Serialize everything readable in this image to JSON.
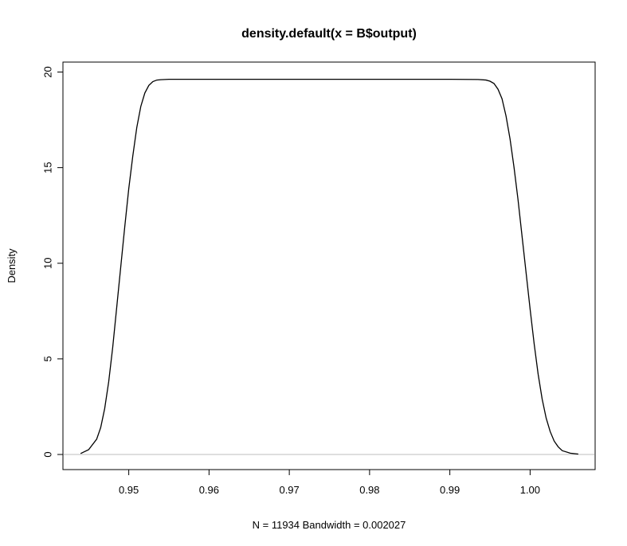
{
  "chart_data": {
    "type": "line",
    "title": "density.default(x = B$output)",
    "xlabel": "N = 11934   Bandwidth = 0.002027",
    "ylabel": "Density",
    "xlim": [
      0.9418,
      1.0081
    ],
    "ylim": [
      -0.79,
      20.52
    ],
    "x_ticks": [
      0.95,
      0.96,
      0.97,
      0.98,
      0.99,
      1.0
    ],
    "x_tick_labels": [
      "0.95",
      "0.96",
      "0.97",
      "0.98",
      "0.99",
      "1.00"
    ],
    "y_ticks": [
      0,
      5,
      10,
      15,
      20
    ],
    "y_tick_labels": [
      "0",
      "5",
      "10",
      "15",
      "20"
    ],
    "baseline": 0,
    "baseline_color": "#bebebe",
    "line_color": "#000000",
    "grid": false,
    "series": [
      {
        "x": [
          0.944,
          0.945,
          0.946,
          0.9465,
          0.947,
          0.9475,
          0.948,
          0.9485,
          0.949,
          0.9495,
          0.95,
          0.9505,
          0.951,
          0.9515,
          0.952,
          0.9525,
          0.953,
          0.9535,
          0.954,
          0.9545,
          0.955,
          0.956,
          0.96,
          0.97,
          0.98,
          0.99,
          0.9935,
          0.9945,
          0.995,
          0.9955,
          0.996,
          0.9965,
          0.997,
          0.9975,
          0.998,
          0.9985,
          0.999,
          0.9995,
          1.0,
          1.0005,
          1.001,
          1.0015,
          1.002,
          1.0025,
          1.003,
          1.0035,
          1.004,
          1.005,
          1.006
        ],
        "y": [
          0.05,
          0.25,
          0.8,
          1.4,
          2.4,
          3.8,
          5.6,
          7.7,
          9.8,
          11.9,
          13.9,
          15.6,
          17.1,
          18.2,
          18.9,
          19.3,
          19.5,
          19.58,
          19.6,
          19.61,
          19.62,
          19.62,
          19.62,
          19.62,
          19.62,
          19.62,
          19.61,
          19.58,
          19.52,
          19.4,
          19.1,
          18.6,
          17.7,
          16.5,
          15.0,
          13.3,
          11.4,
          9.5,
          7.6,
          5.8,
          4.2,
          2.9,
          1.9,
          1.2,
          0.7,
          0.4,
          0.2,
          0.07,
          0.02
        ]
      }
    ]
  }
}
